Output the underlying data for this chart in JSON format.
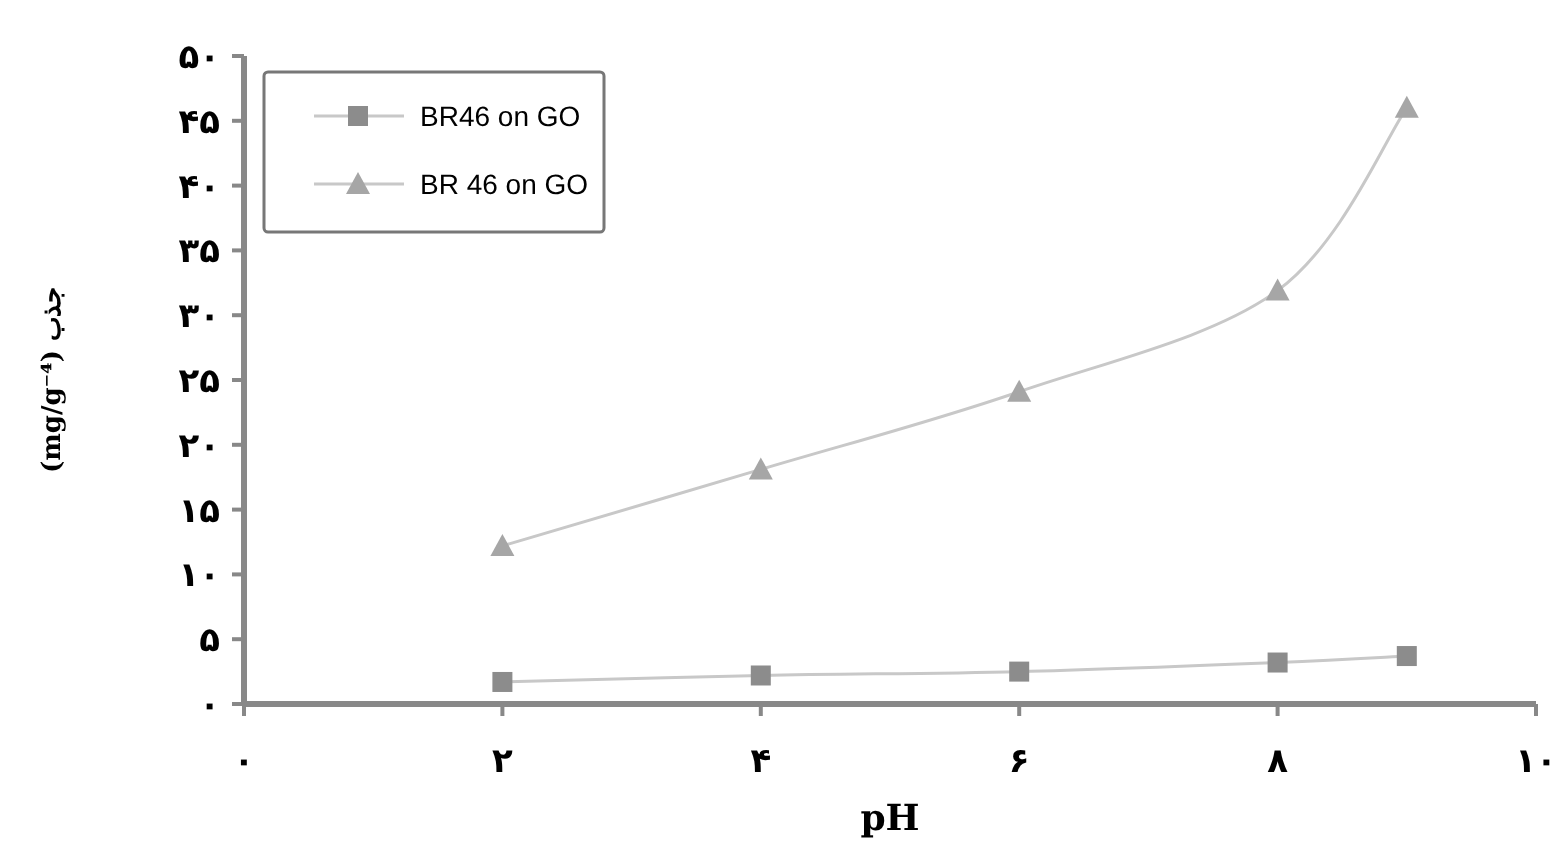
{
  "chart_data": {
    "type": "line",
    "xlabel": "pH",
    "ylabel": "جذب (mg/g⁻⁴)",
    "xlim": [
      0,
      10
    ],
    "ylim": [
      0,
      50
    ],
    "xticks": [
      {
        "value": 0,
        "label": "۰"
      },
      {
        "value": 2,
        "label": "۲"
      },
      {
        "value": 4,
        "label": "۴"
      },
      {
        "value": 6,
        "label": "۶"
      },
      {
        "value": 8,
        "label": "۸"
      },
      {
        "value": 10,
        "label": "۱۰"
      }
    ],
    "yticks": [
      {
        "value": 0,
        "label": "۰"
      },
      {
        "value": 5,
        "label": "۵"
      },
      {
        "value": 10,
        "label": "۱۰"
      },
      {
        "value": 15,
        "label": "۱۵"
      },
      {
        "value": 20,
        "label": "۲۰"
      },
      {
        "value": 25,
        "label": "۲۵"
      },
      {
        "value": 30,
        "label": "۳۰"
      },
      {
        "value": 35,
        "label": "۳۵"
      },
      {
        "value": 40,
        "label": "۴۰"
      },
      {
        "value": 45,
        "label": "۴۵"
      },
      {
        "value": 50,
        "label": "۵۰"
      }
    ],
    "x": [
      2,
      4,
      6,
      8,
      9
    ],
    "series": [
      {
        "name": "BR46 on GO",
        "color": "#8c8c8c",
        "marker": "square",
        "values": [
          1.7,
          2.2,
          2.5,
          3.2,
          3.7
        ]
      },
      {
        "name": "BR 46 on GO",
        "color": "#a6a6a6",
        "marker": "triangle",
        "values": [
          12.2,
          18.1,
          24.1,
          31.9,
          46.0
        ]
      }
    ],
    "legend": "top left",
    "grid": false,
    "line_style": "solid"
  }
}
